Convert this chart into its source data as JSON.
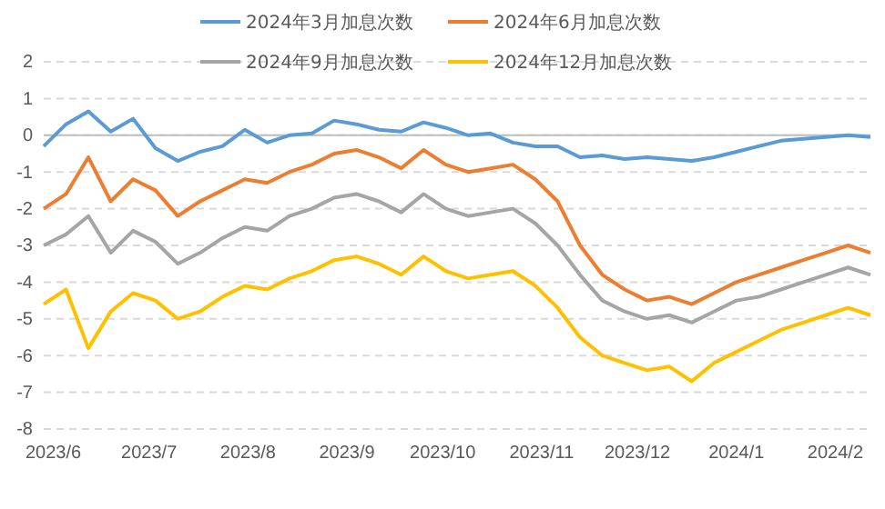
{
  "chart_data": {
    "type": "line",
    "x": [
      "2023-05-29",
      "2023-06-05",
      "2023-06-12",
      "2023-06-19",
      "2023-06-26",
      "2023-07-03",
      "2023-07-10",
      "2023-07-17",
      "2023-07-24",
      "2023-07-31",
      "2023-08-07",
      "2023-08-14",
      "2023-08-21",
      "2023-08-28",
      "2023-09-04",
      "2023-09-11",
      "2023-09-18",
      "2023-09-25",
      "2023-10-02",
      "2023-10-09",
      "2023-10-16",
      "2023-10-23",
      "2023-10-30",
      "2023-11-06",
      "2023-11-13",
      "2023-11-20",
      "2023-11-27",
      "2023-12-04",
      "2023-12-11",
      "2023-12-18",
      "2023-12-25",
      "2024-01-01",
      "2024-01-08",
      "2024-01-15",
      "2024-01-22",
      "2024-01-29",
      "2024-02-05",
      "2024-02-12"
    ],
    "series": [
      {
        "name": "2024年3月加息次数",
        "color": "#5b9bd5",
        "values": [
          -0.3,
          0.3,
          0.65,
          0.1,
          0.45,
          -0.35,
          -0.7,
          -0.45,
          -0.3,
          0.15,
          -0.2,
          0.0,
          0.05,
          0.4,
          0.3,
          0.15,
          0.1,
          0.35,
          0.2,
          0.0,
          0.05,
          -0.2,
          -0.3,
          -0.3,
          -0.6,
          -0.55,
          -0.65,
          -0.6,
          -0.65,
          -0.7,
          -0.6,
          -0.45,
          -0.3,
          -0.15,
          -0.1,
          -0.05,
          0.0,
          -0.05
        ]
      },
      {
        "name": "2024年6月加息次数",
        "color": "#ed7d31",
        "values": [
          -2.0,
          -1.6,
          -0.6,
          -1.8,
          -1.2,
          -1.5,
          -2.2,
          -1.8,
          -1.5,
          -1.2,
          -1.3,
          -1.0,
          -0.8,
          -0.5,
          -0.4,
          -0.6,
          -0.9,
          -0.4,
          -0.8,
          -1.0,
          -0.9,
          -0.8,
          -1.2,
          -1.8,
          -3.0,
          -3.8,
          -4.2,
          -4.5,
          -4.4,
          -4.6,
          -4.3,
          -4.0,
          -3.8,
          -3.6,
          -3.4,
          -3.2,
          -3.0,
          -3.2
        ]
      },
      {
        "name": "2024年9月加息次数",
        "color": "#a5a5a5",
        "values": [
          -3.0,
          -2.7,
          -2.2,
          -3.2,
          -2.6,
          -2.9,
          -3.5,
          -3.2,
          -2.8,
          -2.5,
          -2.6,
          -2.2,
          -2.0,
          -1.7,
          -1.6,
          -1.8,
          -2.1,
          -1.6,
          -2.0,
          -2.2,
          -2.1,
          -2.0,
          -2.4,
          -3.0,
          -3.8,
          -4.5,
          -4.8,
          -5.0,
          -4.9,
          -5.1,
          -4.8,
          -4.5,
          -4.4,
          -4.2,
          -4.0,
          -3.8,
          -3.6,
          -3.8
        ]
      },
      {
        "name": "2024年12月加息次数",
        "color": "#ffc000",
        "values": [
          -4.6,
          -4.2,
          -5.8,
          -4.8,
          -4.3,
          -4.5,
          -5.0,
          -4.8,
          -4.4,
          -4.1,
          -4.2,
          -3.9,
          -3.7,
          -3.4,
          -3.3,
          -3.5,
          -3.8,
          -3.3,
          -3.7,
          -3.9,
          -3.8,
          -3.7,
          -4.1,
          -4.7,
          -5.5,
          -6.0,
          -6.2,
          -6.4,
          -6.3,
          -6.7,
          -6.2,
          -5.9,
          -5.6,
          -5.3,
          -5.1,
          -4.9,
          -4.7,
          -4.9
        ]
      }
    ],
    "xlim": [
      "2023-05-29",
      "2024-02-12"
    ],
    "xticks": [
      {
        "value": "2023-06-01",
        "label": "2023/6"
      },
      {
        "value": "2023-07-01",
        "label": "2023/7"
      },
      {
        "value": "2023-08-01",
        "label": "2023/8"
      },
      {
        "value": "2023-09-01",
        "label": "2023/9"
      },
      {
        "value": "2023-10-01",
        "label": "2023/10"
      },
      {
        "value": "2023-11-01",
        "label": "2023/11"
      },
      {
        "value": "2023-12-01",
        "label": "2023/12"
      },
      {
        "value": "2024-01-01",
        "label": "2024/1"
      },
      {
        "value": "2024-02-01",
        "label": "2024/2"
      }
    ],
    "ylim": [
      -8,
      2
    ],
    "yticks": [
      -8,
      -7,
      -6,
      -5,
      -4,
      -3,
      -2,
      -1,
      0,
      1,
      2
    ],
    "grid": "y",
    "legend": "top",
    "marker": "none",
    "line_style": "solid"
  }
}
